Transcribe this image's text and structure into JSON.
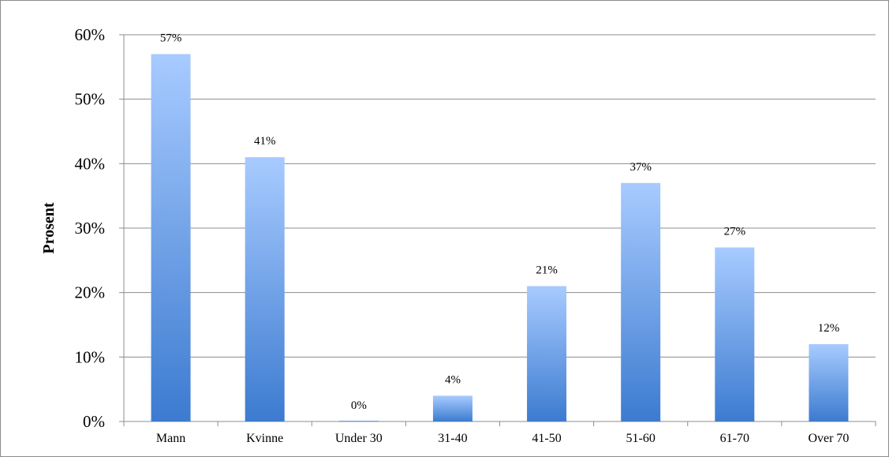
{
  "chart_data": {
    "type": "bar",
    "categories": [
      "Mann",
      "Kvinne",
      "Under 30",
      "31-40",
      "41-50",
      "51-60",
      "61-70",
      "Over 70"
    ],
    "values": [
      57,
      41,
      0,
      4,
      21,
      37,
      27,
      12
    ],
    "data_labels": [
      "57%",
      "41%",
      "0%",
      "4%",
      "21%",
      "37%",
      "27%",
      "12%"
    ],
    "title": "",
    "xlabel": "",
    "ylabel": "Prosent",
    "ylim": [
      0,
      60
    ],
    "yticks": [
      0,
      10,
      20,
      30,
      40,
      50,
      60
    ],
    "ytick_labels": [
      "0%",
      "10%",
      "20%",
      "30%",
      "40%",
      "50%",
      "60%"
    ],
    "grid": true,
    "legend": "none",
    "bar_gradient": [
      "#a8cbff",
      "#3c7bd0"
    ]
  }
}
